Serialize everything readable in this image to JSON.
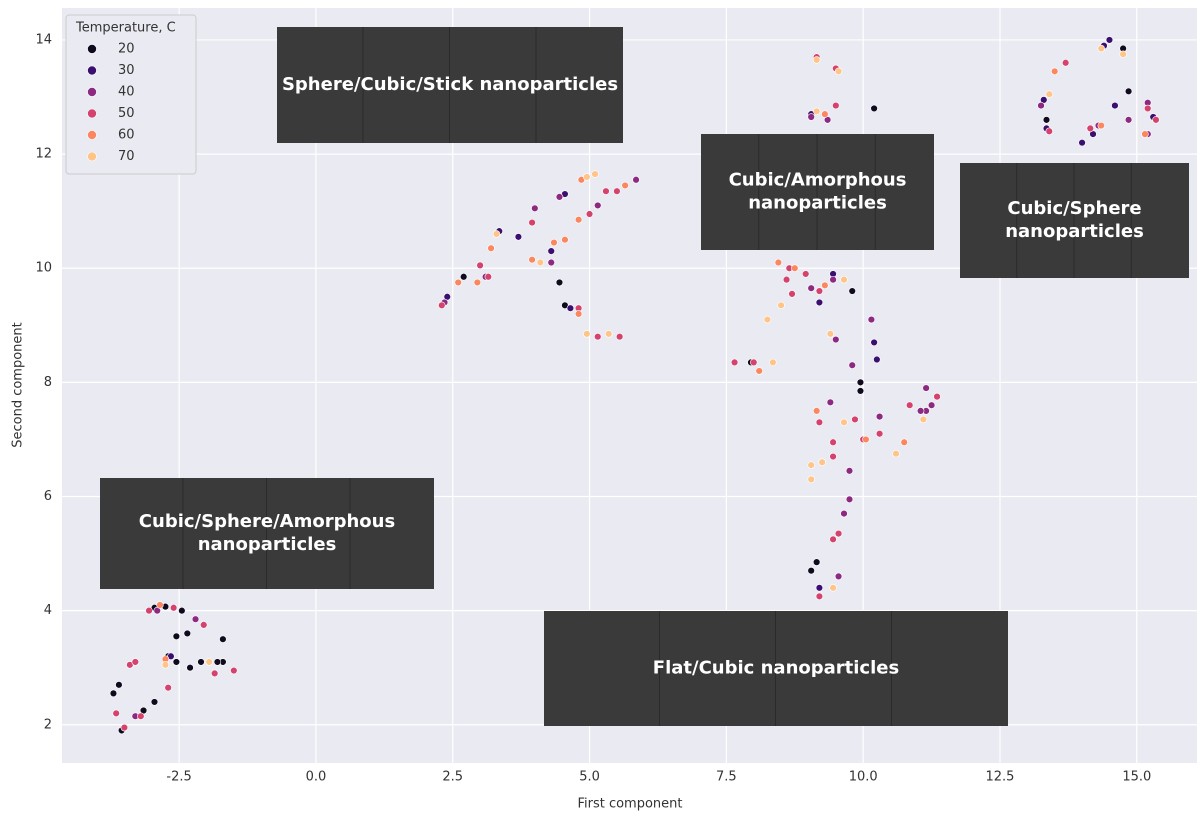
{
  "chart_data": {
    "type": "scatter",
    "xlabel": "First component",
    "ylabel": "Second component",
    "xlim": [
      -4.64,
      16.1
    ],
    "ylim": [
      1.33,
      14.56
    ],
    "xticks": [
      -2.5,
      {
        "value": 0,
        "label": "0.0"
      },
      2.5,
      {
        "value": 5,
        "label": "5.0"
      },
      7.5,
      {
        "value": 10,
        "label": "10.0"
      },
      12.5,
      {
        "value": 15,
        "label": "15.0"
      }
    ],
    "yticks": [
      2,
      4,
      6,
      8,
      10,
      12,
      14
    ],
    "grid": true,
    "legend_title": "Temperature, C",
    "legend_position": "upper-left",
    "annotations": [
      [
        "Sphere/Cubic/Stick nanoparticles"
      ],
      [
        "Cubic/Amorphous",
        "nanoparticles"
      ],
      [
        "Cubic/Sphere",
        "nanoparticles"
      ],
      [
        "Cubic/Sphere/Amorphous",
        "nanoparticles"
      ],
      [
        "Flat/Cubic nanoparticles"
      ]
    ],
    "series": [
      {
        "name": "20",
        "color": "#0f0a1e",
        "x": [
          -3.7,
          -3.6,
          -3.55,
          -3.15,
          -2.95,
          -2.7,
          -2.55,
          -2.45,
          -2.35,
          -2.3,
          -2.1,
          -1.7,
          -1.7,
          -1.8,
          -2.95,
          -2.75,
          -2.55,
          2.7,
          4.45,
          4.55,
          7.95,
          9.05,
          9.15,
          9.8,
          9.95,
          9.95,
          10.2,
          13.35,
          14.75,
          14.85
        ],
        "values": [
          2.55,
          2.7,
          1.9,
          2.25,
          2.4,
          3.2,
          3.55,
          4.0,
          3.6,
          3.0,
          3.1,
          3.5,
          3.1,
          3.1,
          4.05,
          4.07,
          3.1,
          9.85,
          9.75,
          9.35,
          8.35,
          4.7,
          4.85,
          9.6,
          8.0,
          7.85,
          12.8,
          12.6,
          13.85,
          13.1
        ]
      },
      {
        "name": "30",
        "color": "#3b0f70",
        "x": [
          -3.5,
          -2.65,
          2.4,
          3.35,
          4.3,
          4.55,
          4.65,
          3.7,
          9.2,
          9.05,
          9.45,
          10.2,
          10.25,
          9.2,
          13.3,
          13.35,
          14.0,
          14.2,
          14.4,
          14.5,
          14.6,
          15.3
        ],
        "values": [
          1.95,
          3.2,
          9.5,
          10.65,
          10.3,
          11.3,
          9.3,
          10.55,
          4.4,
          12.7,
          9.9,
          8.7,
          8.4,
          9.4,
          12.95,
          12.45,
          12.2,
          12.35,
          13.9,
          14.0,
          12.85,
          12.65
        ]
      },
      {
        "name": "40",
        "color": "#8c2981",
        "x": [
          -2.2,
          -3.3,
          -2.9,
          2.35,
          4.0,
          5.85,
          4.3,
          4.45,
          5.15,
          3.1,
          9.55,
          9.5,
          9.8,
          9.75,
          9.75,
          9.65,
          10.15,
          11.15,
          11.25,
          11.15,
          11.05,
          9.05,
          9.35,
          10.3,
          9.4,
          9.45,
          9.05,
          13.25,
          14.3,
          14.85,
          15.2,
          15.2
        ],
        "values": [
          3.85,
          2.15,
          4.0,
          9.4,
          11.05,
          11.55,
          10.1,
          11.25,
          11.1,
          9.85,
          4.6,
          8.75,
          8.3,
          6.45,
          5.95,
          5.7,
          9.1,
          7.9,
          7.6,
          7.5,
          7.5,
          12.65,
          12.6,
          7.4,
          7.65,
          9.8,
          9.65,
          12.85,
          12.5,
          12.6,
          12.9,
          12.35
        ]
      },
      {
        "name": "50",
        "color": "#d3436e",
        "x": [
          -3.65,
          -3.5,
          -3.4,
          -3.3,
          -3.2,
          -3.05,
          -2.7,
          -2.6,
          -2.05,
          -1.85,
          -1.5,
          2.3,
          3.0,
          3.95,
          3.15,
          5.0,
          5.3,
          4.8,
          5.5,
          5.15,
          5.55,
          9.15,
          9.5,
          9.5,
          9.2,
          8.65,
          8.7,
          8.6,
          8.95,
          7.65,
          8.0,
          9.2,
          9.45,
          9.45,
          9.85,
          10.0,
          10.3,
          10.85,
          11.35,
          9.2,
          9.55,
          9.45,
          13.7,
          13.4,
          14.15,
          15.2,
          15.35
        ],
        "values": [
          2.2,
          1.95,
          3.05,
          3.1,
          2.15,
          4.0,
          2.65,
          4.05,
          3.75,
          2.9,
          2.95,
          9.35,
          10.05,
          10.8,
          9.85,
          10.95,
          11.35,
          9.3,
          11.35,
          8.8,
          8.8,
          13.7,
          13.5,
          12.85,
          9.6,
          10.0,
          9.55,
          9.8,
          9.9,
          8.35,
          8.35,
          7.3,
          6.95,
          6.7,
          7.35,
          7.0,
          7.1,
          7.6,
          7.75,
          4.25,
          5.35,
          5.25,
          13.6,
          12.4,
          12.45,
          12.8,
          12.6
        ]
      },
      {
        "name": "60",
        "color": "#fb8761",
        "x": [
          -2.85,
          -2.75,
          2.6,
          2.95,
          3.2,
          3.95,
          4.35,
          4.55,
          4.85,
          4.8,
          4.8,
          5.65,
          8.45,
          8.75,
          9.3,
          9.15,
          10.05,
          10.75,
          8.1,
          9.3,
          13.5,
          14.35,
          15.15
        ],
        "values": [
          4.1,
          3.15,
          9.75,
          9.75,
          10.35,
          10.15,
          10.45,
          10.5,
          11.55,
          10.85,
          9.2,
          11.45,
          10.1,
          10.0,
          9.7,
          7.5,
          7.0,
          6.95,
          8.2,
          12.7,
          13.45,
          12.5,
          12.35
        ]
      },
      {
        "name": "70",
        "color": "#fec488",
        "x": [
          -2.75,
          -1.95,
          3.3,
          4.1,
          4.95,
          5.1,
          4.95,
          5.35,
          9.15,
          9.55,
          8.25,
          8.5,
          8.35,
          9.4,
          9.65,
          9.05,
          9.05,
          9.25,
          9.65,
          10.6,
          11.1,
          9.45,
          9.15,
          14.35,
          14.75,
          13.4
        ],
        "values": [
          3.05,
          3.1,
          10.6,
          10.1,
          11.6,
          11.65,
          8.85,
          8.85,
          13.65,
          13.45,
          9.1,
          9.35,
          8.35,
          8.85,
          9.8,
          6.55,
          6.3,
          6.6,
          7.3,
          6.75,
          7.35,
          4.4,
          12.75,
          13.85,
          13.75,
          13.05
        ]
      }
    ]
  }
}
